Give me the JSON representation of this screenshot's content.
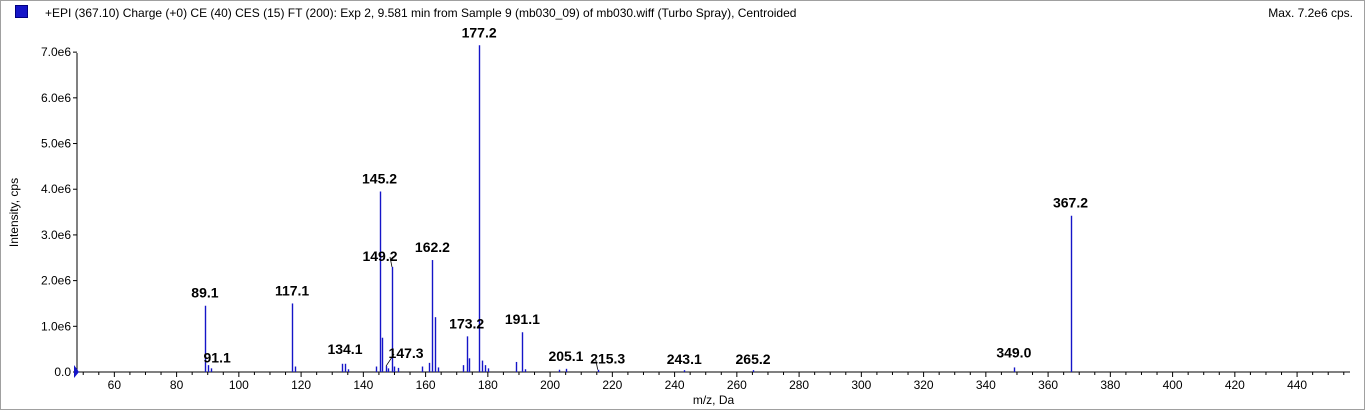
{
  "header": {
    "title": "+EPI (367.10) Charge (+0) CE (40) CES (15) FT (200): Exp 2, 9.581 min from Sample 9 (mb030_09) of mb030.wiff (Turbo Spray), Centroided",
    "max_label": "Max. 7.2e6 cps.",
    "series_color": "#1515c8"
  },
  "chart_data": {
    "type": "bar",
    "xlabel": "m/z, Da",
    "ylabel": "Intensity, cps",
    "xlim": [
      48,
      457
    ],
    "ylim": [
      0,
      7200000.0
    ],
    "x_ticks": [
      60,
      80,
      100,
      120,
      140,
      160,
      180,
      200,
      220,
      240,
      260,
      280,
      300,
      320,
      340,
      360,
      380,
      400,
      420,
      440
    ],
    "y_ticks": [
      {
        "value": 0,
        "label": "0.0"
      },
      {
        "value": 1000000.0,
        "label": "1.0e6"
      },
      {
        "value": 2000000.0,
        "label": "2.0e6"
      },
      {
        "value": 3000000.0,
        "label": "3.0e6"
      },
      {
        "value": 4000000.0,
        "label": "4.0e6"
      },
      {
        "value": 5000000.0,
        "label": "5.0e6"
      },
      {
        "value": 6000000.0,
        "label": "6.0e6"
      },
      {
        "value": 7000000.0,
        "label": "7.0e6"
      }
    ],
    "peaks": [
      {
        "x": 89.1,
        "y": 1450000,
        "label": "89.1"
      },
      {
        "x": 90.0,
        "y": 150000
      },
      {
        "x": 91.1,
        "y": 80000,
        "label": "91.1"
      },
      {
        "x": 117.1,
        "y": 1500000,
        "label": "117.1"
      },
      {
        "x": 118.0,
        "y": 120000
      },
      {
        "x": 133.0,
        "y": 180000
      },
      {
        "x": 134.1,
        "y": 180000,
        "label": "134.1"
      },
      {
        "x": 135.0,
        "y": 60000
      },
      {
        "x": 144.0,
        "y": 120000
      },
      {
        "x": 145.2,
        "y": 3950000,
        "label": "145.2"
      },
      {
        "x": 146.0,
        "y": 750000
      },
      {
        "x": 147.3,
        "y": 130000,
        "label": "147.3"
      },
      {
        "x": 148.0,
        "y": 80000
      },
      {
        "x": 149.2,
        "y": 2300000,
        "label": "149.2"
      },
      {
        "x": 150.0,
        "y": 120000
      },
      {
        "x": 151.0,
        "y": 90000
      },
      {
        "x": 159.0,
        "y": 120000
      },
      {
        "x": 161.0,
        "y": 200000
      },
      {
        "x": 162.2,
        "y": 2450000,
        "label": "162.2"
      },
      {
        "x": 163.1,
        "y": 1200000
      },
      {
        "x": 164.0,
        "y": 100000
      },
      {
        "x": 172.0,
        "y": 150000
      },
      {
        "x": 173.2,
        "y": 780000,
        "label": "173.2"
      },
      {
        "x": 174.0,
        "y": 300000
      },
      {
        "x": 177.2,
        "y": 7150000,
        "label": "177.2"
      },
      {
        "x": 178.0,
        "y": 250000
      },
      {
        "x": 179.0,
        "y": 150000
      },
      {
        "x": 180.0,
        "y": 80000
      },
      {
        "x": 189.0,
        "y": 220000
      },
      {
        "x": 191.1,
        "y": 870000,
        "label": "191.1"
      },
      {
        "x": 192.0,
        "y": 60000
      },
      {
        "x": 203.0,
        "y": 50000
      },
      {
        "x": 205.1,
        "y": 70000,
        "label": "205.1"
      },
      {
        "x": 215.3,
        "y": 50000,
        "label": "215.3"
      },
      {
        "x": 243.1,
        "y": 40000,
        "label": "243.1"
      },
      {
        "x": 265.2,
        "y": 40000,
        "label": "265.2"
      },
      {
        "x": 349.0,
        "y": 100000,
        "label": "349.0"
      },
      {
        "x": 367.2,
        "y": 3420000,
        "label": "367.2"
      }
    ]
  }
}
